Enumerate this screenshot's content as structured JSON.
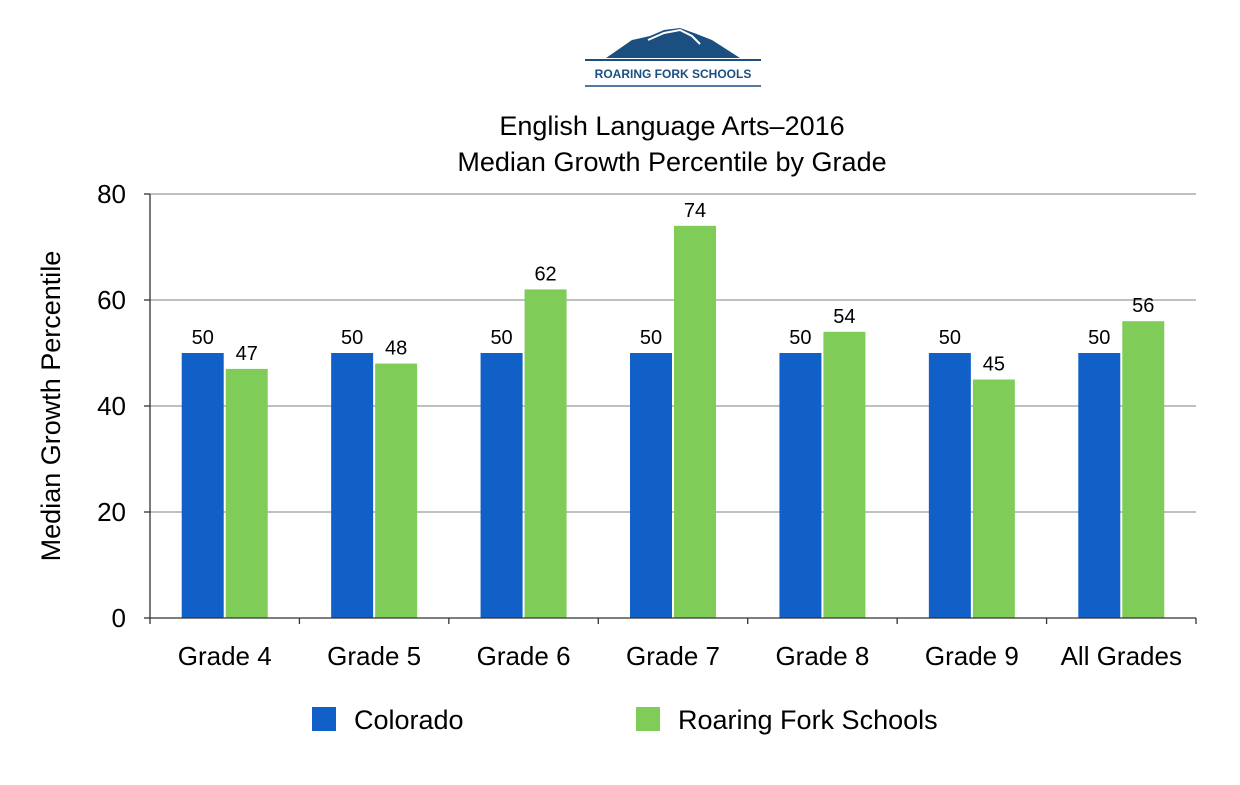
{
  "logo": {
    "text": "ROARING FORK SCHOOLS",
    "color": "#1a4f7f"
  },
  "chart_data": {
    "type": "bar",
    "title": "English Language Arts–2016",
    "subtitle": "Median Growth Percentile by Grade",
    "xlabel": "",
    "ylabel": "Median Growth Percentile",
    "ylim": [
      0,
      80
    ],
    "yticks": [
      0,
      20,
      40,
      60,
      80
    ],
    "grid": true,
    "legend_position": "bottom",
    "categories": [
      "Grade 4",
      "Grade 5",
      "Grade 6",
      "Grade 7",
      "Grade 8",
      "Grade 9",
      "All Grades"
    ],
    "series": [
      {
        "name": "Colorado",
        "color": "#1060c8",
        "values": [
          50,
          50,
          50,
          50,
          50,
          50,
          50
        ]
      },
      {
        "name": "Roaring Fork Schools",
        "color": "#80cc58",
        "values": [
          47,
          48,
          62,
          74,
          54,
          45,
          56
        ]
      }
    ]
  }
}
